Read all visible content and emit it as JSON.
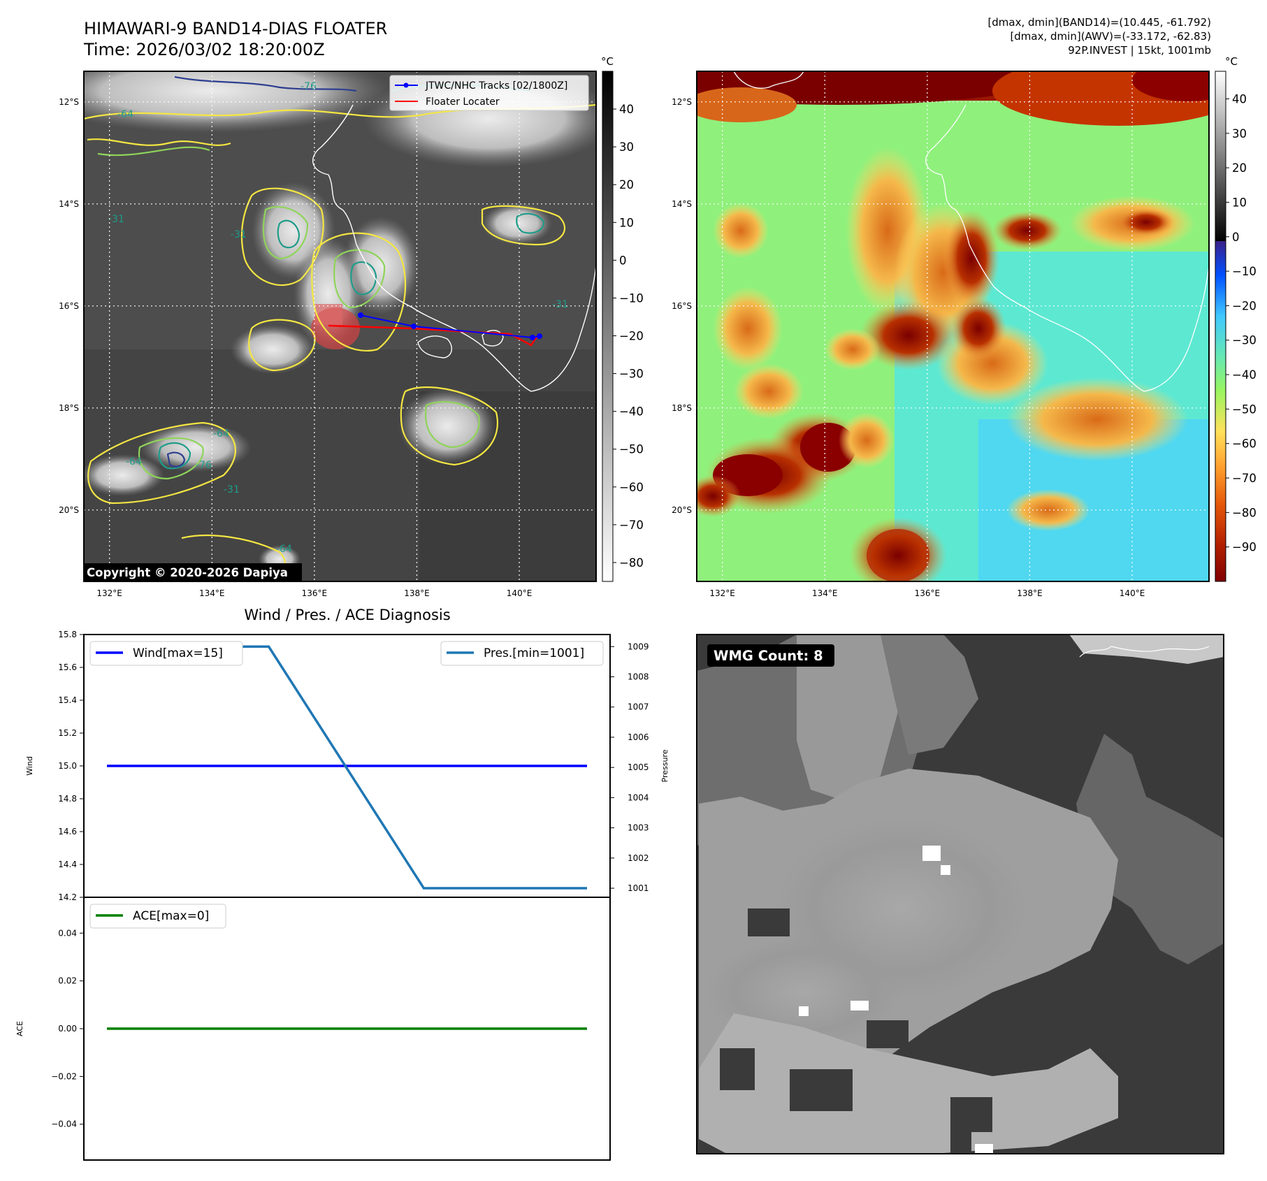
{
  "header": {
    "title": "HIMAWARI-9 BAND14-DIAS FLOATER",
    "time": "Time: 2026/03/02 18:20:00Z",
    "stats_band14": "[dmax, dmin](BAND14)=(10.445, -61.792)",
    "stats_awv": "[dmax, dmin](AWV)=(-33.172, -62.83)",
    "storm": "92P.INVEST | 15kt, 1001mb"
  },
  "map_axes": {
    "lon_labels": [
      "132°E",
      "134°E",
      "136°E",
      "138°E",
      "140°E"
    ],
    "lon_values": [
      132,
      134,
      136,
      138,
      140
    ],
    "lat_labels": [
      "12°S",
      "14°S",
      "16°S",
      "18°S",
      "20°S"
    ],
    "lat_values": [
      -12,
      -14,
      -16,
      -18,
      -20
    ],
    "lon_range": [
      131.5,
      141.5
    ],
    "lat_range": [
      -21.4,
      -11.4
    ]
  },
  "ir_panel": {
    "legend": [
      "JTWC/NHC Tracks [02/1800Z]",
      "Floater Locater"
    ],
    "contour_labels": [
      "-64",
      "-76",
      "-31",
      "-31",
      "-64",
      "-76",
      "-64",
      "-31",
      "-64",
      "-31"
    ],
    "copyright": "Copyright © 2020-2026 Dapiya",
    "colorbar_unit": "°C",
    "colorbar_ticks": [
      "40",
      "30",
      "20",
      "10",
      "0",
      "−10",
      "−20",
      "−30",
      "−40",
      "−50",
      "−60",
      "−70",
      "−80"
    ],
    "colorbar_range": [
      -85,
      50
    ],
    "colors": {
      "track": "#0000ff",
      "locater": "#ff0000",
      "contour_outer": "#f4e642",
      "contour_mid": "#8fd45a",
      "contour_inner": "#1e9c8a",
      "contour_deep": "#2e3e90"
    }
  },
  "awv_panel": {
    "colorbar_unit": "°C",
    "colorbar_ticks": [
      "40",
      "30",
      "20",
      "10",
      "0",
      "−10",
      "−20",
      "−30",
      "−40",
      "−50",
      "−60",
      "−70",
      "−80",
      "−90"
    ],
    "colorbar_range": [
      -100,
      48
    ]
  },
  "wmg_panel": {
    "badge": "WMG Count: 8"
  },
  "chart_data": [
    {
      "type": "line",
      "title": "Wind / Pres. / ACE Diagnosis",
      "ylabel": "Wind",
      "ylim": [
        14.2,
        15.8
      ],
      "yticks": [
        "15.8",
        "15.6",
        "15.4",
        "15.2",
        "15.0",
        "14.8",
        "14.6",
        "14.4",
        "14.2"
      ],
      "series": [
        {
          "name": "Wind[max=15]",
          "color": "#0000ff",
          "x": [
            0,
            1
          ],
          "values": [
            15,
            15
          ]
        }
      ]
    },
    {
      "type": "line",
      "ylabel": "Pressure",
      "ylim": [
        1000.7,
        1009.4
      ],
      "yticks": [
        "1009",
        "1008",
        "1007",
        "1006",
        "1005",
        "1004",
        "1003",
        "1002",
        "1001"
      ],
      "series": [
        {
          "name": "Pres.[min=1001]",
          "color": "#1f77b4",
          "x": [
            0,
            0.337,
            0.66,
            1
          ],
          "values": [
            1009,
            1009,
            1001,
            1001
          ]
        }
      ]
    },
    {
      "type": "line",
      "ylabel": "ACE",
      "ylim": [
        -0.055,
        0.055
      ],
      "yticks": [
        "0.04",
        "0.02",
        "0.00",
        "−0.02",
        "−0.04"
      ],
      "series": [
        {
          "name": "ACE[max=0]",
          "color": "#008000",
          "x": [
            0,
            1
          ],
          "values": [
            0,
            0
          ]
        }
      ]
    }
  ]
}
